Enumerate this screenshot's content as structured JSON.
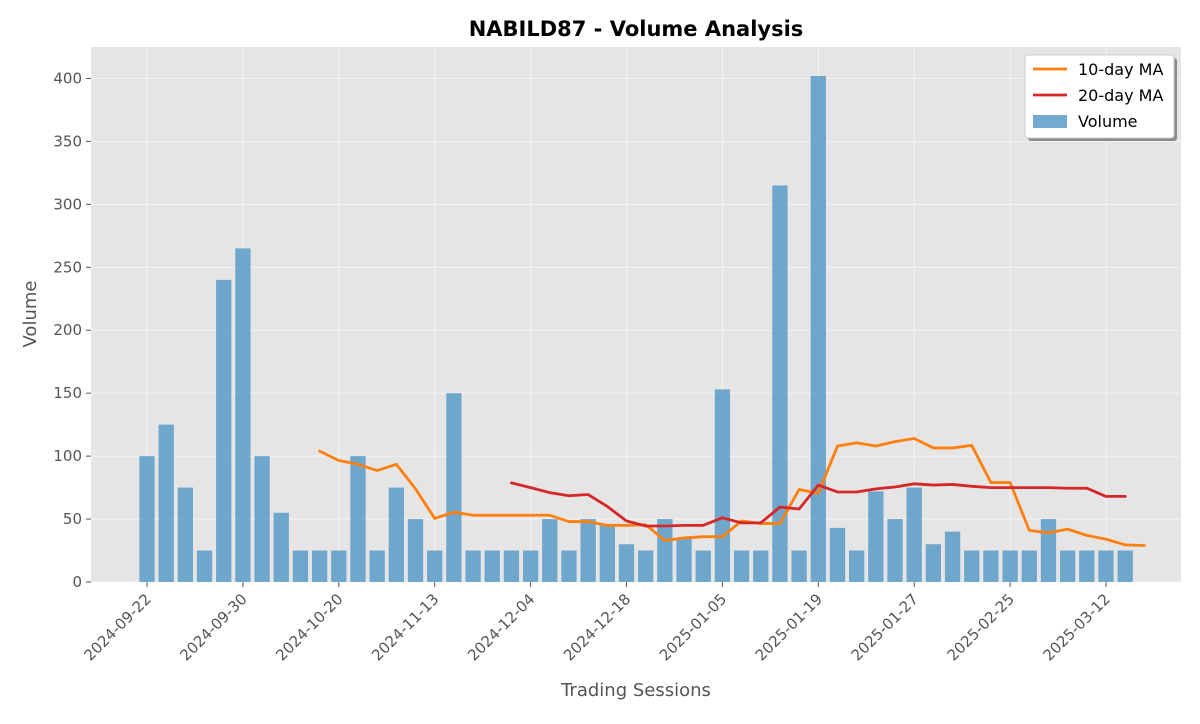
{
  "chart_data": {
    "type": "bar",
    "title": "NABILD87 - Volume Analysis",
    "xlabel": "Trading Sessions",
    "ylabel": "Volume",
    "ylim": [
      0,
      425
    ],
    "yticks": [
      0,
      50,
      100,
      150,
      200,
      250,
      300,
      350,
      400
    ],
    "grid": true,
    "legend_position": "top-right",
    "x_tick_labels": [
      {
        "index": 0,
        "label": "2024-09-22"
      },
      {
        "index": 5,
        "label": "2024-09-30"
      },
      {
        "index": 10,
        "label": "2024-10-20"
      },
      {
        "index": 15,
        "label": "2024-11-13"
      },
      {
        "index": 20,
        "label": "2024-12-04"
      },
      {
        "index": 25,
        "label": "2024-12-18"
      },
      {
        "index": 30,
        "label": "2025-01-05"
      },
      {
        "index": 35,
        "label": "2025-01-19"
      },
      {
        "index": 40,
        "label": "2025-01-27"
      },
      {
        "index": 45,
        "label": "2025-02-25"
      },
      {
        "index": 50,
        "label": "2025-03-12"
      }
    ],
    "series": [
      {
        "name": "Volume",
        "kind": "bar",
        "color": "#5b9bc8",
        "values": [
          100,
          125,
          75,
          25,
          240,
          265,
          100,
          55,
          25,
          25,
          25,
          100,
          25,
          75,
          50,
          25,
          150,
          25,
          25,
          25,
          25,
          50,
          25,
          50,
          45,
          30,
          25,
          50,
          35,
          25,
          153,
          25,
          25,
          315,
          25,
          402,
          43,
          25,
          72,
          50,
          75,
          30,
          40,
          25,
          25,
          25,
          25,
          50,
          25,
          25,
          25,
          25
        ]
      },
      {
        "name": "10-day MA",
        "kind": "line",
        "color": "#ff7f0e",
        "start_index": 9,
        "values": [
          104,
          96.5,
          93.5,
          88.5,
          93.5,
          74,
          50.5,
          55.5,
          53,
          53,
          53,
          53,
          53,
          48,
          48,
          45,
          45,
          45.5,
          33,
          35,
          36,
          36,
          48.5,
          46.5,
          46.5,
          73.5,
          70.5,
          108,
          110.5,
          108,
          111.5,
          114,
          106.5,
          106.5,
          108.5,
          79,
          79,
          41,
          39,
          42,
          37,
          34,
          29.5,
          29
        ]
      },
      {
        "name": "20-day MA",
        "kind": "line",
        "color": "#d62728",
        "start_index": 19,
        "values": [
          78.75,
          75,
          71,
          68.5,
          69.5,
          60,
          48.5,
          44.5,
          44.5,
          45,
          45,
          51,
          47,
          47,
          59.5,
          58,
          77,
          71.5,
          71.5,
          74,
          75.5,
          78,
          77,
          77.5,
          76,
          75,
          75,
          75,
          75,
          74.5,
          74.5,
          68,
          68
        ]
      }
    ]
  }
}
